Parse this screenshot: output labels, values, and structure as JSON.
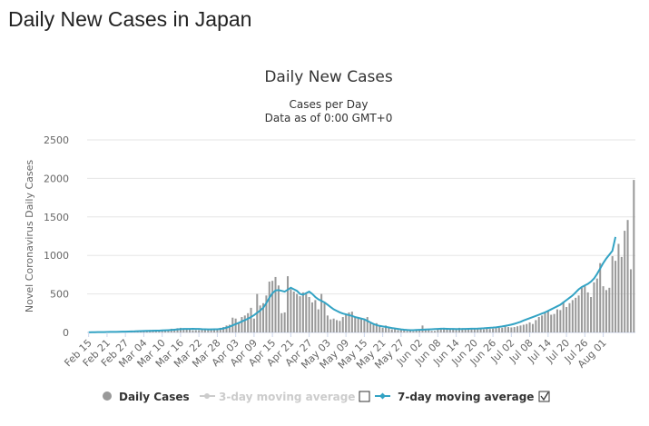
{
  "page": {
    "title": "Daily New Cases in Japan"
  },
  "colors": {
    "bar": "#999999",
    "line": "#33a3c4",
    "inactive": "#cccccc",
    "text": "#333333",
    "grid": "#e6e6e6"
  },
  "chart_data": {
    "type": "bar",
    "title": "Daily New Cases",
    "subtitle_lines": [
      "Cases per Day",
      "Data as of 0:00 GMT+0"
    ],
    "ylabel": "Novel Coronavirus Daily Cases",
    "xlabel": "",
    "ylim": [
      0,
      2500
    ],
    "yticks": [
      0,
      500,
      1000,
      1500,
      2000,
      2500
    ],
    "grid": true,
    "x_tick_labels": [
      "Feb 15",
      "Feb 21",
      "Feb 27",
      "Mar 04",
      "Mar 10",
      "Mar 16",
      "Mar 22",
      "Mar 28",
      "Apr 03",
      "Apr 09",
      "Apr 15",
      "Apr 21",
      "Apr 27",
      "May 03",
      "May 09",
      "May 15",
      "May 21",
      "May 27",
      "Jun 02",
      "Jun 08",
      "Jun 14",
      "Jun 20",
      "Jun 26",
      "Jul 02",
      "Jul 08",
      "Jul 14",
      "Jul 20",
      "Jul 26",
      "Aug 01"
    ],
    "series": [
      {
        "name": "Daily Cases",
        "kind": "bar",
        "start_date": "Feb 15",
        "values": [
          1,
          1,
          6,
          2,
          2,
          11,
          3,
          6,
          9,
          9,
          12,
          14,
          14,
          5,
          13,
          18,
          20,
          23,
          25,
          20,
          32,
          33,
          22,
          20,
          26,
          34,
          30,
          48,
          44,
          55,
          60,
          40,
          38,
          49,
          28,
          30,
          30,
          42,
          45,
          40,
          49,
          43,
          50,
          60,
          70,
          90,
          100,
          192,
          180,
          120,
          200,
          220,
          250,
          320,
          180,
          500,
          350,
          380,
          480,
          660,
          670,
          720,
          610,
          250,
          260,
          730,
          560,
          530,
          500,
          470,
          520,
          500,
          460,
          390,
          420,
          300,
          500,
          380,
          220,
          170,
          180,
          160,
          150,
          200,
          230,
          260,
          270,
          200,
          190,
          180,
          160,
          200,
          120,
          100,
          120,
          80,
          60,
          90,
          70,
          40,
          50,
          30,
          40,
          30,
          20,
          20,
          15,
          25,
          30,
          90,
          40,
          30,
          20,
          20,
          35,
          55,
          60,
          50,
          40,
          40,
          45,
          60,
          50,
          45,
          40,
          40,
          50,
          55,
          45,
          40,
          55,
          45,
          50,
          55,
          60,
          60,
          80,
          70,
          65,
          70,
          80,
          90,
          100,
          110,
          130,
          110,
          160,
          200,
          220,
          250,
          280,
          230,
          240,
          300,
          290,
          400,
          330,
          380,
          420,
          450,
          480,
          580,
          600,
          520,
          460,
          650,
          700,
          900,
          600,
          550,
          580,
          990,
          930,
          1150,
          980,
          1320,
          1460,
          820,
          1980
        ]
      },
      {
        "name": "3-day moving average",
        "kind": "line",
        "hidden": true
      },
      {
        "name": "7-day moving average",
        "kind": "line",
        "values": [
          2,
          3,
          3,
          4,
          4,
          5,
          6,
          7,
          8,
          8,
          9,
          10,
          11,
          12,
          13,
          14,
          16,
          18,
          19,
          20,
          21,
          22,
          23,
          24,
          26,
          28,
          30,
          32,
          36,
          40,
          43,
          45,
          45,
          46,
          47,
          46,
          45,
          43,
          42,
          40,
          40,
          41,
          42,
          45,
          52,
          62,
          75,
          92,
          108,
          125,
          142,
          160,
          178,
          200,
          225,
          255,
          285,
          320,
          380,
          450,
          510,
          545,
          550,
          540,
          530,
          555,
          580,
          560,
          540,
          500,
          490,
          510,
          530,
          500,
          460,
          430,
          410,
          390,
          360,
          330,
          300,
          280,
          260,
          245,
          235,
          225,
          215,
          200,
          190,
          180,
          170,
          150,
          130,
          110,
          95,
          85,
          78,
          72,
          65,
          58,
          52,
          46,
          40,
          35,
          32,
          30,
          30,
          32,
          34,
          36,
          38,
          40,
          42,
          44,
          46,
          48,
          48,
          47,
          46,
          45,
          44,
          44,
          45,
          46,
          47,
          48,
          49,
          50,
          52,
          54,
          57,
          60,
          63,
          67,
          72,
          78,
          85,
          93,
          102,
          112,
          124,
          138,
          155,
          170,
          185,
          200,
          215,
          230,
          245,
          260,
          280,
          300,
          320,
          340,
          360,
          390,
          420,
          450,
          480,
          520,
          560,
          590,
          610,
          630,
          660,
          700,
          760,
          830,
          900,
          960,
          1010,
          1060,
          1240
        ]
      }
    ]
  },
  "legend": {
    "items": [
      {
        "label": "Daily Cases",
        "active": true
      },
      {
        "label": "3-day moving average",
        "active": false
      },
      {
        "label": "7-day moving average",
        "active": true
      }
    ]
  }
}
